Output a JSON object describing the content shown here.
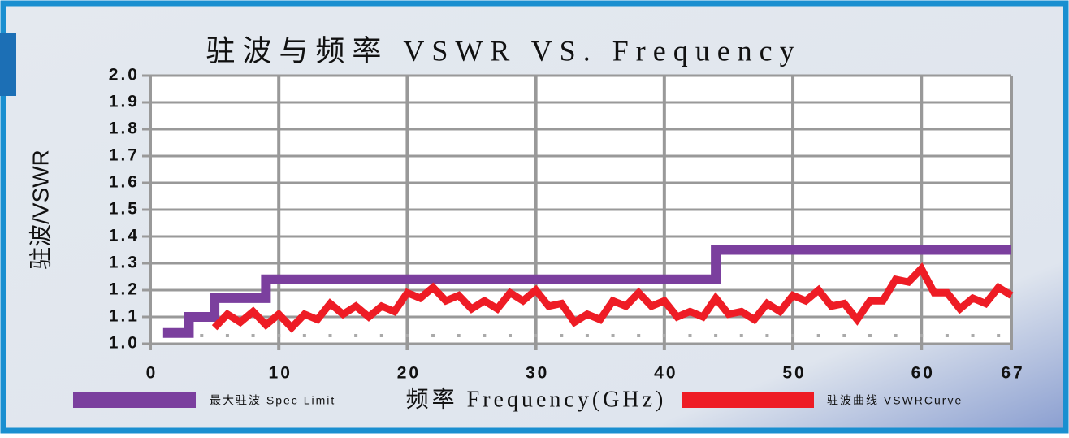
{
  "chart_data": {
    "type": "line",
    "title": "驻波与频率 VSWR VS. Frequency",
    "xlabel": "频率 Frequency(GHz)",
    "ylabel": "驻波/VSWR",
    "xlim": [
      0,
      67
    ],
    "xticks": [
      0,
      10,
      20,
      30,
      40,
      50,
      60,
      67
    ],
    "ylim": [
      1,
      2
    ],
    "yticks": [
      {
        "value": 1,
        "label": "1.0"
      },
      1.1,
      1.2,
      1.3,
      1.4,
      1.5,
      1.6,
      1.7,
      1.8,
      1.9,
      {
        "value": 2,
        "label": "2.0"
      }
    ],
    "grid": true,
    "series": [
      {
        "name": "最大驻波 Spec Limit",
        "color": "#7b3f9e",
        "x": [
          1,
          3,
          3,
          5,
          5,
          9,
          9,
          44,
          44,
          67
        ],
        "values": [
          1.04,
          1.04,
          1.1,
          1.1,
          1.17,
          1.17,
          1.24,
          1.24,
          1.35,
          1.35
        ]
      },
      {
        "name": "驻波曲线 VSWRCurve",
        "color": "#ee1c25",
        "x": [
          5,
          6,
          7,
          8,
          9,
          10,
          11,
          12,
          13,
          14,
          15,
          16,
          17,
          18,
          19,
          20,
          21,
          22,
          23,
          24,
          25,
          26,
          27,
          28,
          29,
          30,
          31,
          32,
          33,
          34,
          35,
          36,
          37,
          38,
          39,
          40,
          41,
          42,
          43,
          44,
          45,
          46,
          47,
          48,
          49,
          50,
          51,
          52,
          53,
          54,
          55,
          56,
          57,
          58,
          59,
          60,
          61,
          62,
          63,
          64,
          65,
          66,
          67
        ],
        "values": [
          1.06,
          1.11,
          1.08,
          1.12,
          1.07,
          1.11,
          1.06,
          1.11,
          1.09,
          1.15,
          1.11,
          1.14,
          1.1,
          1.14,
          1.12,
          1.19,
          1.17,
          1.21,
          1.16,
          1.18,
          1.13,
          1.16,
          1.13,
          1.19,
          1.16,
          1.2,
          1.14,
          1.15,
          1.08,
          1.11,
          1.09,
          1.16,
          1.14,
          1.19,
          1.14,
          1.16,
          1.1,
          1.12,
          1.1,
          1.17,
          1.11,
          1.12,
          1.09,
          1.15,
          1.12,
          1.18,
          1.16,
          1.2,
          1.14,
          1.15,
          1.09,
          1.16,
          1.16,
          1.24,
          1.23,
          1.28,
          1.19,
          1.19,
          1.13,
          1.17,
          1.15,
          1.21,
          1.18
        ]
      }
    ]
  }
}
